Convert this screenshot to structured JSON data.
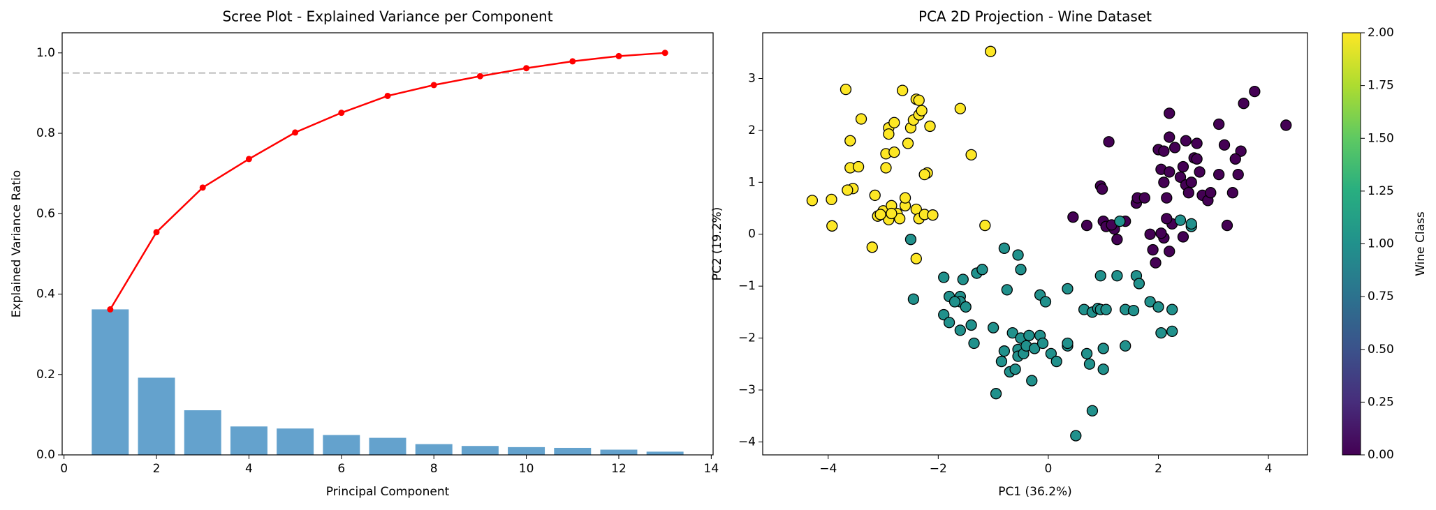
{
  "chart_data": [
    {
      "type": "bar",
      "title": "Scree Plot - Explained Variance per Component",
      "xlabel": "Principal Component",
      "ylabel": "Explained Variance Ratio",
      "x": [
        1,
        2,
        3,
        4,
        5,
        6,
        7,
        8,
        9,
        10,
        11,
        12,
        13
      ],
      "series": [
        {
          "type": "bar",
          "color": "#64a2cd",
          "values": [
            0.362,
            0.192,
            0.111,
            0.0707,
            0.0656,
            0.0494,
            0.0424,
            0.0268,
            0.0222,
            0.0193,
            0.0174,
            0.013,
            0.008
          ]
        },
        {
          "type": "line",
          "color": "#ff0000",
          "values": [
            0.362,
            0.554,
            0.665,
            0.736,
            0.802,
            0.851,
            0.893,
            0.92,
            0.942,
            0.962,
            0.979,
            0.992,
            1.0
          ]
        }
      ],
      "hline": {
        "value": 0.95,
        "color": "#bbbbbb"
      },
      "xlim": [
        -0.04,
        14.04
      ],
      "ylim": [
        0,
        1.05
      ],
      "xticks": [
        0,
        2,
        4,
        6,
        8,
        10,
        12,
        14
      ],
      "yticks": [
        {
          "value": 0,
          "label": "0.0"
        },
        0.2,
        0.4,
        0.6,
        0.8,
        {
          "value": 1,
          "label": "1.0"
        }
      ]
    },
    {
      "type": "scatter",
      "title": "PCA 2D Projection - Wine Dataset",
      "xlabel": "PC1 (36.2%)",
      "ylabel": "PC2 (19.2%)",
      "series": [
        {
          "class_value": 2,
          "x": [
            -4.29,
            -3.94,
            -3.93,
            -3.68,
            -3.6,
            -3.6,
            -3.55,
            -3.65,
            -3.45,
            -3.4,
            -3.2,
            -3.15,
            -3.1,
            -3.0,
            -2.95,
            -2.95,
            -2.9,
            -2.9,
            -2.9,
            -2.85,
            -2.8,
            -2.8,
            -2.75,
            -2.7,
            -2.65,
            -2.6,
            -2.6,
            -2.55,
            -2.5,
            -2.45,
            -2.4,
            -2.35,
            -2.35,
            -2.3,
            -2.4,
            -2.35,
            -2.4,
            -2.25,
            -2.2,
            -2.25,
            -2.15,
            -2.1,
            -1.6,
            -1.4,
            -1.15,
            -1.05,
            -2.85,
            -3.05
          ],
          "y": [
            0.65,
            0.67,
            0.16,
            2.79,
            1.8,
            1.28,
            0.88,
            0.85,
            1.3,
            2.22,
            -0.25,
            0.75,
            0.35,
            0.45,
            1.55,
            1.28,
            2.05,
            1.93,
            0.28,
            0.55,
            1.58,
            2.15,
            0.4,
            0.3,
            2.77,
            0.55,
            0.7,
            1.75,
            2.05,
            2.2,
            2.6,
            2.58,
            2.3,
            2.38,
            0.48,
            0.3,
            -0.47,
            0.38,
            1.18,
            1.15,
            2.08,
            0.37,
            2.42,
            1.53,
            0.17,
            3.52,
            0.4,
            0.38
          ]
        },
        {
          "class_value": 0,
          "x": [
            0.45,
            0.7,
            0.95,
            0.98,
            1.0,
            1.05,
            1.1,
            1.2,
            1.25,
            1.15,
            1.6,
            1.62,
            1.75,
            1.85,
            1.9,
            1.95,
            2.0,
            2.05,
            2.1,
            2.1,
            2.15,
            2.2,
            2.2,
            2.2,
            2.25,
            2.3,
            2.1,
            2.2,
            2.4,
            2.45,
            2.5,
            2.5,
            2.55,
            2.6,
            2.65,
            2.7,
            2.7,
            2.75,
            2.8,
            2.9,
            2.95,
            3.1,
            3.1,
            3.2,
            3.25,
            3.35,
            3.45,
            3.5,
            3.55,
            3.4,
            3.75,
            4.32,
            2.45,
            2.15,
            1.4,
            2.05
          ],
          "y": [
            0.33,
            0.17,
            0.93,
            0.87,
            0.25,
            0.15,
            1.78,
            0.1,
            -0.1,
            0.18,
            0.6,
            0.7,
            0.7,
            0.0,
            -0.3,
            -0.55,
            1.63,
            1.25,
            1.6,
            1.0,
            0.7,
            2.33,
            1.2,
            1.87,
            0.2,
            1.67,
            -0.07,
            -0.33,
            1.1,
            1.3,
            1.8,
            0.95,
            0.8,
            1.0,
            1.47,
            1.45,
            1.75,
            1.2,
            0.75,
            0.65,
            0.8,
            2.12,
            1.15,
            1.72,
            0.17,
            0.8,
            1.15,
            1.6,
            2.52,
            1.45,
            2.75,
            2.1,
            -0.05,
            0.3,
            0.25,
            0.02
          ]
        },
        {
          "class_value": 1,
          "x": [
            -2.45,
            -2.5,
            -1.9,
            -1.9,
            -1.8,
            -1.8,
            -1.6,
            -1.6,
            -1.6,
            -1.7,
            -1.5,
            -1.4,
            -1.35,
            -1.55,
            -1.3,
            -1.2,
            -1.0,
            -0.95,
            -0.85,
            -0.8,
            -0.8,
            -0.75,
            -0.7,
            -0.6,
            -0.65,
            -0.55,
            -0.55,
            -0.55,
            -0.5,
            -0.5,
            -0.45,
            -0.4,
            -0.35,
            -0.3,
            -0.25,
            -0.15,
            -0.15,
            -0.1,
            -0.05,
            0.05,
            0.15,
            0.35,
            0.35,
            0.35,
            0.5,
            0.65,
            0.7,
            0.75,
            0.8,
            0.8,
            0.9,
            0.95,
            0.95,
            1.0,
            1.05,
            1.0,
            1.25,
            1.3,
            1.4,
            1.4,
            1.55,
            1.6,
            1.65,
            1.85,
            2.0,
            2.05,
            2.25,
            2.25,
            2.4,
            2.6,
            2.6
          ],
          "y": [
            -1.25,
            -0.1,
            -0.83,
            -1.55,
            -1.7,
            -1.2,
            -1.2,
            -1.3,
            -1.85,
            -1.3,
            -1.4,
            -1.75,
            -2.1,
            -0.87,
            -0.75,
            -0.68,
            -1.8,
            -3.07,
            -2.45,
            -2.25,
            -0.27,
            -1.07,
            -2.65,
            -2.6,
            -1.9,
            -2.22,
            -2.35,
            -0.4,
            -2.0,
            -0.68,
            -2.3,
            -2.15,
            -1.95,
            -2.82,
            -2.2,
            -1.95,
            -1.17,
            -2.1,
            -1.3,
            -2.3,
            -2.45,
            -2.15,
            -2.1,
            -1.05,
            -3.88,
            -1.45,
            -2.3,
            -2.5,
            -3.4,
            -1.5,
            -1.43,
            -0.8,
            -1.45,
            -2.2,
            -1.45,
            -2.6,
            -0.8,
            0.25,
            -2.15,
            -1.45,
            -1.47,
            -0.8,
            -0.95,
            -1.3,
            -1.4,
            -1.9,
            -1.45,
            -1.87,
            0.27,
            0.15,
            0.2
          ]
        }
      ],
      "xlim": [
        -5.19,
        4.71
      ],
      "ylim": [
        -4.25,
        3.88
      ],
      "xticks": [
        {
          "value": -4,
          "label": "−4"
        },
        {
          "value": -2,
          "label": "−2"
        },
        0,
        2,
        4
      ],
      "yticks": [
        {
          "value": -4,
          "label": "−4"
        },
        {
          "value": -3,
          "label": "−3"
        },
        {
          "value": -2,
          "label": "−2"
        },
        {
          "value": -1,
          "label": "−1"
        },
        0,
        1,
        2,
        3
      ],
      "colorbar": {
        "label": "Wine Class",
        "colormap": "viridis",
        "lim": [
          0,
          2
        ],
        "ticks": [
          {
            "value": 0,
            "label": "0.00"
          },
          {
            "value": 0.25,
            "label": "0.25"
          },
          {
            "value": 0.5,
            "label": "0.50"
          },
          {
            "value": 0.75,
            "label": "0.75"
          },
          {
            "value": 1,
            "label": "1.00"
          },
          {
            "value": 1.25,
            "label": "1.25"
          },
          {
            "value": 1.5,
            "label": "1.50"
          },
          {
            "value": 1.75,
            "label": "1.75"
          },
          {
            "value": 2,
            "label": "2.00"
          }
        ]
      }
    }
  ]
}
